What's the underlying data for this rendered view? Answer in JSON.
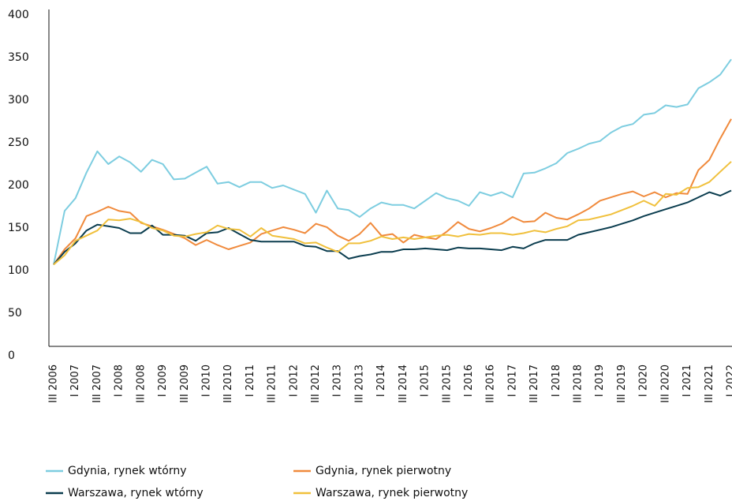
{
  "chart_data": {
    "type": "line",
    "categories": [
      "III 2006",
      null,
      "I 2007",
      null,
      "III 2007",
      null,
      "I 2008",
      null,
      "III 2008",
      null,
      "I 2009",
      null,
      "III 2009",
      null,
      "I 2010",
      null,
      "III 2010",
      null,
      "I 2011",
      null,
      "III 2011",
      null,
      "I 2012",
      null,
      "III 2012",
      null,
      "I 2013",
      null,
      "III 2013",
      null,
      "I 2014",
      null,
      "III 2014",
      null,
      "I 2015",
      null,
      "III 2015",
      null,
      "I 2016",
      null,
      "III 2016",
      null,
      "I 2017",
      null,
      "III 2017",
      null,
      "I 2018",
      null,
      "III 2018",
      null,
      "I 2019",
      null,
      "III 2019",
      null,
      "I 2020",
      null,
      "III 2020",
      null,
      "I 2021",
      null,
      "III 2021",
      null,
      "I 2022"
    ],
    "series": [
      {
        "name": "Gdynia, rynek wtórny",
        "color": "#7dcde0",
        "values": [
          107,
          170,
          185,
          215,
          240,
          225,
          234,
          227,
          216,
          230,
          225,
          207,
          208,
          215,
          222,
          202,
          204,
          198,
          204,
          204,
          197,
          200,
          195,
          190,
          168,
          194,
          173,
          171,
          163,
          173,
          180,
          177,
          177,
          173,
          182,
          191,
          185,
          182,
          176,
          192,
          188,
          192,
          186,
          214,
          215,
          220,
          226,
          238,
          243,
          249,
          252,
          262,
          269,
          272,
          283,
          285,
          294,
          292,
          295,
          314,
          321,
          330,
          348
        ]
      },
      {
        "name": "Gdynia, rynek pierwotny",
        "color": "#f08a3c",
        "values": [
          107,
          125,
          138,
          164,
          169,
          175,
          170,
          168,
          156,
          152,
          148,
          143,
          138,
          130,
          136,
          130,
          125,
          129,
          133,
          143,
          147,
          151,
          148,
          144,
          155,
          151,
          141,
          135,
          143,
          156,
          141,
          143,
          133,
          142,
          139,
          137,
          146,
          157,
          149,
          146,
          150,
          155,
          163,
          157,
          158,
          168,
          162,
          160,
          166,
          173,
          182,
          186,
          190,
          193,
          187,
          192,
          186,
          191,
          190,
          218,
          230,
          255,
          278
        ]
      },
      {
        "name": "Warszawa, rynek wtórny",
        "color": "#0b3d4f",
        "values": [
          107,
          122,
          132,
          147,
          154,
          152,
          150,
          144,
          144,
          153,
          142,
          142,
          141,
          135,
          144,
          145,
          150,
          143,
          136,
          134,
          134,
          134,
          134,
          129,
          128,
          123,
          123,
          114,
          117,
          119,
          122,
          122,
          125,
          125,
          126,
          125,
          124,
          127,
          126,
          126,
          125,
          124,
          128,
          126,
          132,
          136,
          136,
          136,
          142,
          145,
          148,
          151,
          155,
          159,
          164,
          168,
          172,
          176,
          180,
          186,
          192,
          188,
          194
        ]
      },
      {
        "name": "Warszawa, rynek pierwotny",
        "color": "#f0c03c",
        "values": [
          107,
          118,
          135,
          141,
          147,
          160,
          159,
          161,
          157,
          150,
          147,
          141,
          140,
          143,
          145,
          153,
          149,
          148,
          140,
          150,
          141,
          139,
          137,
          132,
          133,
          127,
          122,
          132,
          132,
          135,
          140,
          137,
          139,
          137,
          139,
          141,
          142,
          140,
          143,
          142,
          144,
          144,
          142,
          144,
          147,
          145,
          149,
          152,
          159,
          160,
          163,
          166,
          171,
          176,
          182,
          176,
          190,
          189,
          197,
          198,
          204,
          216,
          228
        ]
      }
    ],
    "ylim": [
      0,
      400
    ],
    "yticks": [
      0,
      50,
      100,
      150,
      200,
      250,
      300,
      350,
      400
    ],
    "grid": false
  }
}
